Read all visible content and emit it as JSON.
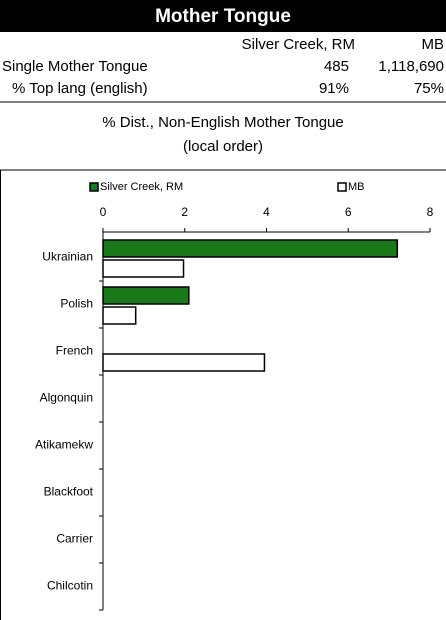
{
  "table": {
    "title": "Mother Tongue",
    "header": [
      "Silver Creek, RM",
      "MB"
    ],
    "rows": [
      [
        "Single Mother Tongue",
        "485",
        "1,118,690"
      ],
      [
        "% Top lang (english)",
        "91%",
        "75%"
      ]
    ]
  },
  "chart_data": {
    "type": "bar",
    "orientation": "horizontal",
    "title": "% Dist., Non-English Mother Tongue",
    "subtitle": "(local order)",
    "categories": [
      "Ukrainian",
      "Polish",
      "French",
      "Algonquin",
      "Atikamekw",
      "Blackfoot",
      "Carrier",
      "Chilcotin"
    ],
    "series": [
      {
        "name": "Silver Creek, RM",
        "color": "#1a7a1a",
        "values": [
          7.2,
          2.1,
          0,
          0,
          0,
          0,
          0,
          0
        ]
      },
      {
        "name": "MB",
        "color": "#ffffff",
        "values": [
          1.97,
          0.8,
          3.95,
          0,
          0,
          0,
          0,
          0
        ]
      }
    ],
    "xlim": [
      0,
      8
    ],
    "xticks": [
      0,
      2,
      4,
      6,
      8
    ],
    "legend": "top"
  }
}
